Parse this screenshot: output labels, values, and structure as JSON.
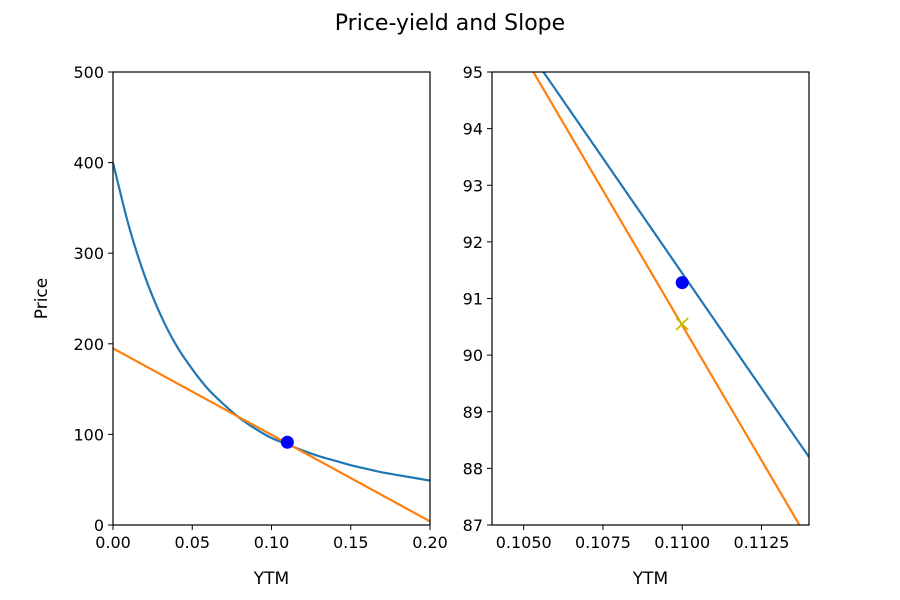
{
  "figure": {
    "title": "Price-yield and Slope"
  },
  "chart_data": [
    {
      "type": "line",
      "xlabel": "YTM",
      "ylabel": "Price",
      "xlim": [
        0.0,
        0.2
      ],
      "ylim": [
        0,
        500
      ],
      "xticks": [
        "0.00",
        "0.05",
        "0.10",
        "0.15",
        "0.20"
      ],
      "yticks": [
        "0",
        "100",
        "200",
        "300",
        "400",
        "500"
      ],
      "grid": false,
      "series": [
        {
          "color": "#1f77b4",
          "x": [
            0.0,
            0.01,
            0.02,
            0.03,
            0.04,
            0.05,
            0.06,
            0.07,
            0.08,
            0.09,
            0.1,
            0.11,
            0.12,
            0.13,
            0.14,
            0.15,
            0.16,
            0.17,
            0.18,
            0.19,
            0.2
          ],
          "y": [
            400,
            330,
            275,
            232,
            198,
            172,
            150,
            133,
            118,
            106,
            96,
            89,
            82,
            76,
            71,
            66,
            62,
            58,
            55,
            52,
            49
          ]
        },
        {
          "color": "#ff7f0e",
          "x": [
            0.0,
            0.2
          ],
          "y": [
            195,
            4
          ]
        },
        {
          "type": "scatter",
          "marker": "circle",
          "color": "#0000ff",
          "x": [
            0.11
          ],
          "y": [
            91.3
          ]
        }
      ]
    },
    {
      "type": "line",
      "xlabel": "YTM",
      "ylabel": "",
      "xlim": [
        0.104,
        0.114
      ],
      "ylim": [
        87,
        95
      ],
      "xticks": [
        "0.1050",
        "0.1075",
        "0.1100",
        "0.1125"
      ],
      "yticks": [
        "87",
        "88",
        "89",
        "90",
        "91",
        "92",
        "93",
        "94",
        "95"
      ],
      "grid": false,
      "series": [
        {
          "color": "#1f77b4",
          "x": [
            0.1055,
            0.114
          ],
          "y": [
            95.1,
            88.2
          ]
        },
        {
          "color": "#ff7f0e",
          "x": [
            0.1052,
            0.1137
          ],
          "y": [
            95.1,
            87.0
          ]
        },
        {
          "type": "scatter",
          "marker": "circle",
          "color": "#0000ff",
          "x": [
            0.11
          ],
          "y": [
            91.28
          ]
        },
        {
          "type": "scatter",
          "marker": "x",
          "color": "#bfbf00",
          "x": [
            0.11
          ],
          "y": [
            90.55
          ]
        }
      ]
    }
  ]
}
